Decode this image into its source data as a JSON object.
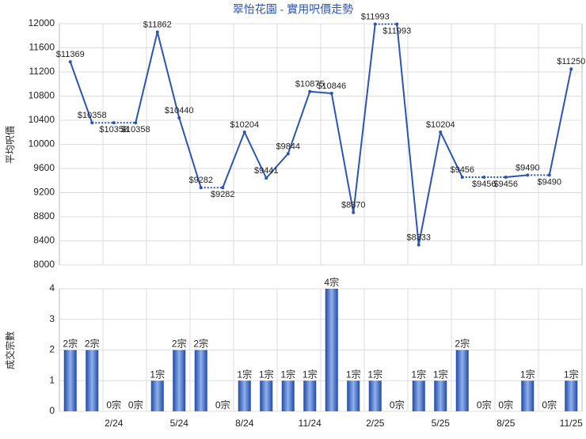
{
  "chart_data": [
    {
      "type": "line",
      "title": "翠怡花園 - 實用呎價走勢",
      "ylabel": "平均呎價",
      "color": "#2a55b8",
      "values": [
        11369,
        10358,
        10358,
        10358,
        11862,
        10440,
        9282,
        9282,
        10204,
        9441,
        9844,
        10875,
        10846,
        8870,
        11993,
        11993,
        8333,
        10204,
        9456,
        9456,
        9456,
        9490,
        9490,
        11250
      ],
      "value_labels": [
        "$11369",
        "$10358",
        "$10358",
        "$10358",
        "$11862",
        "$10440",
        "$9282",
        "$9282",
        "$10204",
        "$9441",
        "$9844",
        "$10875",
        "$10846",
        "$8870",
        "$11993",
        "$11993",
        "$8333",
        "$10204",
        "$9456",
        "$9456",
        "$9456",
        "$9490",
        "$9490",
        "$11250"
      ],
      "ylim": [
        8000,
        12000
      ],
      "yticks": [
        8000,
        8400,
        8800,
        9200,
        9600,
        10000,
        10400,
        10800,
        11200,
        11600,
        12000
      ],
      "grid": true
    },
    {
      "type": "bar",
      "ylabel": "成交宗數",
      "color": "#3a66c8",
      "categories": [
        null,
        null,
        "2/24",
        null,
        null,
        "5/24",
        null,
        null,
        "8/24",
        null,
        null,
        "11/24",
        null,
        null,
        "2/25",
        null,
        null,
        "5/25",
        null,
        null,
        "8/25",
        null,
        null,
        "11/25"
      ],
      "values": [
        2,
        2,
        0,
        0,
        1,
        2,
        2,
        0,
        1,
        1,
        1,
        1,
        4,
        1,
        1,
        0,
        1,
        1,
        2,
        0,
        0,
        1,
        0,
        1
      ],
      "value_labels": [
        "2宗",
        "2宗",
        "0宗",
        "0宗",
        "1宗",
        "2宗",
        "2宗",
        "0宗",
        "1宗",
        "1宗",
        "1宗",
        "1宗",
        "4宗",
        "1宗",
        "1宗",
        "0宗",
        "1宗",
        "1宗",
        "2宗",
        "0宗",
        "0宗",
        "1宗",
        "0宗",
        "1宗"
      ],
      "ylim": [
        0,
        4
      ],
      "yticks": [
        0,
        1,
        2,
        3,
        4
      ],
      "grid": true
    }
  ]
}
